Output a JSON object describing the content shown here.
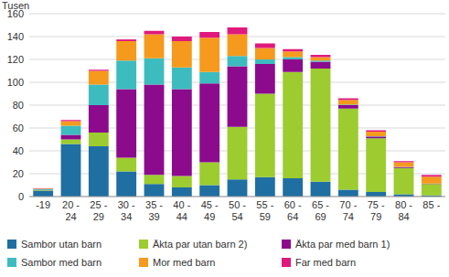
{
  "chart_data": {
    "type": "bar",
    "stacked": true,
    "grid": true,
    "legend": "bottom",
    "ylabel": "Tusen",
    "categories": [
      "-19",
      "20 - 24",
      "25 - 29",
      "30 - 34",
      "35 - 39",
      "40 - 44",
      "45 - 49",
      "50 - 54",
      "55 - 59",
      "60 - 64",
      "65 - 69",
      "70 - 74",
      "75 - 79",
      "80 - 84",
      "85 -"
    ],
    "ylim": [
      0,
      160
    ],
    "yticks": [
      0,
      20,
      40,
      60,
      80,
      100,
      120,
      140,
      160
    ],
    "series": [
      {
        "name": "Sambor utan barn",
        "color": "#1f6fa3",
        "values": [
          5,
          46,
          44,
          22,
          11,
          8,
          10,
          15,
          17,
          16,
          13,
          6,
          4,
          2,
          1
        ]
      },
      {
        "name": "Äkta par utan barn 2)",
        "color": "#9ccc2f",
        "values": [
          0.5,
          4,
          12,
          12,
          8,
          10,
          20,
          46,
          73,
          93,
          99,
          71,
          47,
          23,
          10
        ]
      },
      {
        "name": "Äkta par med barn 1)",
        "color": "#8c0b8c",
        "values": [
          0.2,
          4,
          24,
          60,
          79,
          76,
          69,
          53,
          26,
          11,
          6,
          3,
          1.5,
          0.8,
          0.3
        ]
      },
      {
        "name": "Sambor med barn",
        "color": "#3dbcc0",
        "values": [
          0.8,
          8,
          18,
          25,
          23,
          19,
          10,
          9,
          4,
          2,
          1,
          0.5,
          0.3,
          0.2,
          0.1
        ]
      },
      {
        "name": "Mor med barn",
        "color": "#f59a1c",
        "values": [
          0.5,
          4,
          12,
          17,
          21,
          23,
          30,
          19,
          10,
          5,
          3,
          4,
          4,
          4,
          6
        ]
      },
      {
        "name": "Far med barn",
        "color": "#e0197d",
        "values": [
          0.3,
          1,
          1,
          1.5,
          3,
          4,
          5,
          6,
          4,
          2,
          2,
          1.5,
          1.2,
          1,
          1.5
        ]
      }
    ]
  }
}
